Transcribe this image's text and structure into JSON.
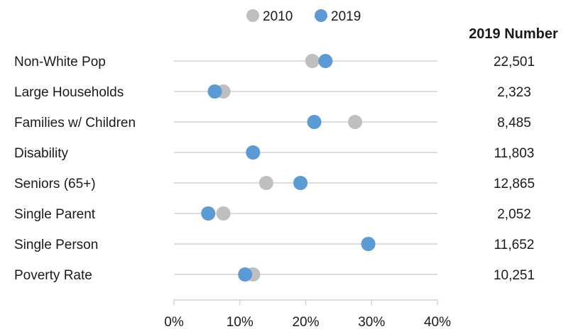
{
  "chart_data": {
    "type": "scatter",
    "subtype": "dumbbell",
    "categories": [
      "Non-White Pop",
      "Large Households",
      "Families w/ Children",
      "Disability",
      "Seniors (65+)",
      "Single Parent",
      "Single Person",
      "Poverty Rate"
    ],
    "series": [
      {
        "name": "2010",
        "values": [
          21,
          7.5,
          27.5,
          12,
          14,
          7.5,
          29.5,
          12
        ],
        "color": "#bfbfbf"
      },
      {
        "name": "2019",
        "values": [
          23,
          6.2,
          21.3,
          12,
          19.2,
          5.2,
          29.5,
          10.8
        ],
        "color": "#5b9bd5"
      }
    ],
    "x_ticks": [
      "0%",
      "10%",
      "20%",
      "30%",
      "40%"
    ],
    "xlim": [
      0,
      40
    ],
    "legend_position": "top",
    "numbers_header": "2019 Number",
    "numbers": [
      "22,501",
      "2,323",
      "8,485",
      "11,803",
      "12,865",
      "2,052",
      "11,652",
      "10,251"
    ]
  }
}
